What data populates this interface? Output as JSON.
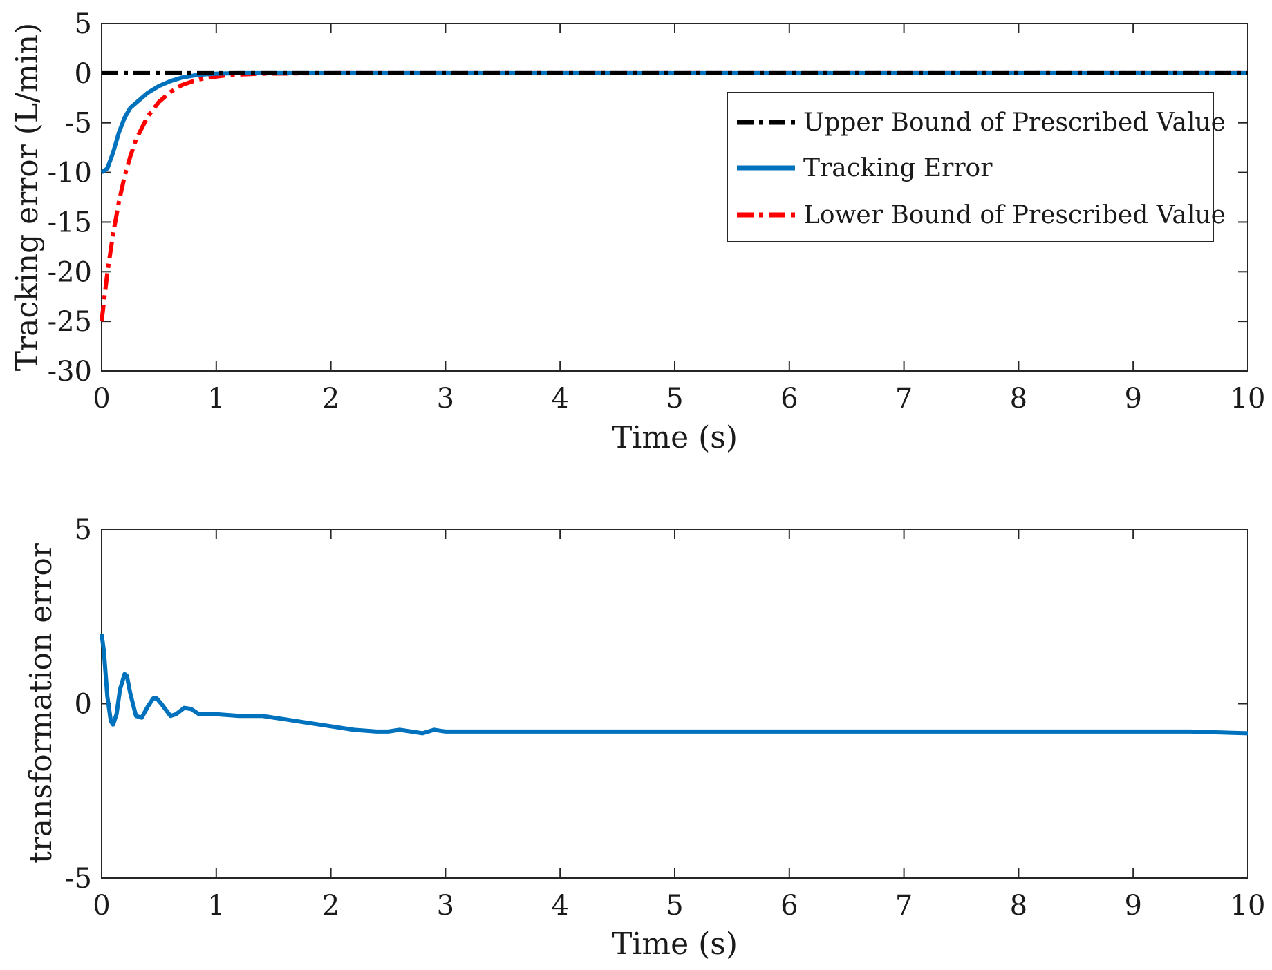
{
  "chart_data": [
    {
      "type": "line",
      "xlabel": "Time (s)",
      "ylabel": "Tracking error (L/min)",
      "xlim": [
        0,
        10
      ],
      "ylim": [
        -30,
        5
      ],
      "xticks": [
        0,
        1,
        2,
        3,
        4,
        5,
        6,
        7,
        8,
        9,
        10
      ],
      "yticks": [
        5,
        0,
        -5,
        -10,
        -15,
        -20,
        -25,
        -30
      ],
      "grid": false,
      "legend_position": "top-right",
      "series": [
        {
          "name": "Upper Bound of Prescribed Value",
          "color": "#000000",
          "style": "dash-dot",
          "x": [
            0,
            1,
            2,
            3,
            4,
            5,
            6,
            7,
            8,
            9,
            10
          ],
          "y": [
            0,
            0,
            0,
            0,
            0,
            0,
            0,
            0,
            0,
            0,
            0
          ]
        },
        {
          "name": "Tracking Error",
          "color": "#0072BD",
          "style": "solid",
          "x": [
            0,
            0.05,
            0.1,
            0.15,
            0.2,
            0.25,
            0.3,
            0.4,
            0.5,
            0.6,
            0.7,
            0.8,
            0.9,
            1.0,
            1.2,
            1.5,
            2,
            3,
            4,
            5,
            6,
            7,
            8,
            9,
            10
          ],
          "y": [
            -10.0,
            -9.6,
            -8.0,
            -6.0,
            -4.5,
            -3.5,
            -3.0,
            -2.0,
            -1.3,
            -0.8,
            -0.45,
            -0.25,
            -0.12,
            -0.05,
            0,
            0,
            0,
            0,
            0,
            0,
            0,
            0,
            0,
            0,
            0
          ]
        },
        {
          "name": "Lower Bound of Prescribed Value",
          "color": "#FF0000",
          "style": "dash-dot",
          "x": [
            0,
            0.05,
            0.1,
            0.15,
            0.2,
            0.25,
            0.3,
            0.4,
            0.5,
            0.6,
            0.7,
            0.8,
            0.9,
            1.0,
            1.1,
            1.2,
            1.4,
            2,
            3,
            4,
            5,
            6,
            7,
            8,
            9,
            10
          ],
          "y": [
            -25.0,
            -20.1,
            -16.2,
            -13.0,
            -10.4,
            -8.4,
            -6.7,
            -4.4,
            -2.9,
            -1.9,
            -1.2,
            -0.8,
            -0.5,
            -0.35,
            -0.2,
            -0.15,
            -0.05,
            0,
            0,
            0,
            0,
            0,
            0,
            0,
            0,
            0
          ]
        }
      ]
    },
    {
      "type": "line",
      "xlabel": "Time (s)",
      "ylabel": "transformation error",
      "xlim": [
        0,
        10
      ],
      "ylim": [
        -5,
        5
      ],
      "xticks": [
        0,
        1,
        2,
        3,
        4,
        5,
        6,
        7,
        8,
        9,
        10
      ],
      "yticks": [
        5,
        0,
        -5
      ],
      "grid": false,
      "series": [
        {
          "name": "transformation error",
          "color": "#0072BD",
          "style": "solid",
          "x": [
            0,
            0.02,
            0.05,
            0.08,
            0.1,
            0.13,
            0.16,
            0.2,
            0.22,
            0.25,
            0.3,
            0.35,
            0.4,
            0.45,
            0.48,
            0.52,
            0.6,
            0.65,
            0.72,
            0.78,
            0.85,
            0.95,
            1.0,
            1.2,
            1.4,
            1.6,
            1.8,
            2.0,
            2.2,
            2.4,
            2.5,
            2.6,
            2.7,
            2.8,
            2.9,
            3.0,
            3.5,
            4.0,
            4.5,
            5.0,
            5.5,
            6.0,
            6.5,
            7.0,
            7.5,
            8.0,
            8.5,
            9.0,
            9.5,
            10.0
          ],
          "y": [
            2.0,
            1.5,
            0.2,
            -0.5,
            -0.6,
            -0.3,
            0.4,
            0.85,
            0.8,
            0.3,
            -0.35,
            -0.4,
            -0.1,
            0.15,
            0.15,
            0.0,
            -0.35,
            -0.3,
            -0.12,
            -0.15,
            -0.3,
            -0.3,
            -0.3,
            -0.35,
            -0.35,
            -0.45,
            -0.55,
            -0.65,
            -0.75,
            -0.8,
            -0.8,
            -0.75,
            -0.8,
            -0.85,
            -0.75,
            -0.8,
            -0.8,
            -0.8,
            -0.8,
            -0.8,
            -0.8,
            -0.8,
            -0.8,
            -0.8,
            -0.8,
            -0.8,
            -0.8,
            -0.8,
            -0.8,
            -0.85
          ]
        }
      ]
    }
  ],
  "colors": {
    "upper_bound": "#000000",
    "tracking_error": "#0072BD",
    "lower_bound": "#FF0000",
    "axes": "#262626"
  }
}
